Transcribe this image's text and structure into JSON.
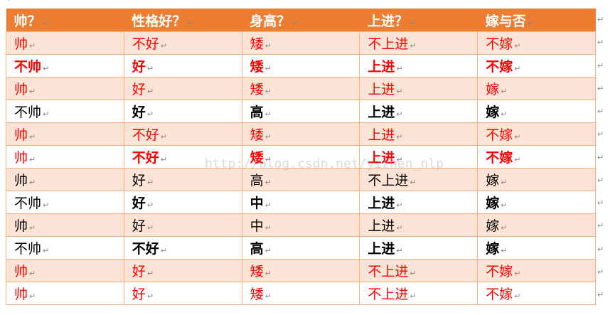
{
  "paragraph_mark": "↵",
  "watermark": "http://blog.csdn.net/yizhen_nlp",
  "colors": {
    "header_bg": "#ed7d31",
    "shade_bg": "#fbe4d5",
    "border": "#f4b183",
    "highlight": "#ff0000"
  },
  "headers": [
    "帅？",
    "性格好？",
    "身高？",
    "上进？",
    "嫁与否"
  ],
  "rows": [
    {
      "cells": [
        "帅",
        "不好",
        "矮",
        "不上进",
        "不嫁"
      ],
      "color": "red",
      "bold": false
    },
    {
      "cells": [
        "不帅",
        "好",
        "矮",
        "上进",
        "不嫁"
      ],
      "color": "red",
      "bold": true
    },
    {
      "cells": [
        "帅",
        "好",
        "矮",
        "上进",
        "嫁"
      ],
      "color": "red",
      "bold": false
    },
    {
      "cells": [
        "不帅",
        "好",
        "高",
        "上进",
        "嫁"
      ],
      "color": "black",
      "bold": true
    },
    {
      "cells": [
        "帅",
        "不好",
        "矮",
        "上进",
        "不嫁"
      ],
      "color": "red",
      "bold": false
    },
    {
      "cells": [
        "帅",
        "不好",
        "矮",
        "上进",
        "不嫁"
      ],
      "color": "red",
      "bold": true
    },
    {
      "cells": [
        "帅",
        "好",
        "高",
        "不上进",
        "嫁"
      ],
      "color": "black",
      "bold": false
    },
    {
      "cells": [
        "不帅",
        "好",
        "中",
        "上进",
        "嫁"
      ],
      "color": "black",
      "bold": true
    },
    {
      "cells": [
        "帅",
        "好",
        "中",
        "上进",
        "嫁"
      ],
      "color": "black",
      "bold": false
    },
    {
      "cells": [
        "不帅",
        "不好",
        "高",
        "上进",
        "嫁"
      ],
      "color": "black",
      "bold": true
    },
    {
      "cells": [
        "帅",
        "好",
        "矮",
        "不上进",
        "不嫁"
      ],
      "color": "red",
      "bold": false
    },
    {
      "cells": [
        "帅",
        "好",
        "矮",
        "不上进",
        "不嫁"
      ],
      "color": "red",
      "bold": false
    }
  ]
}
